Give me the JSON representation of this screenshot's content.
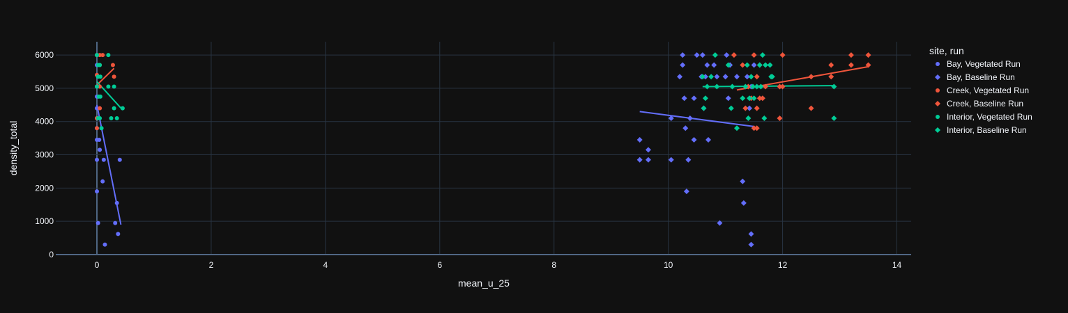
{
  "chart_data": {
    "type": "scatter",
    "title": "",
    "xlabel": "mean_u_25",
    "ylabel": "density_total",
    "xlim": [
      -0.72,
      14.25
    ],
    "ylim": [
      -0.01,
      6400
    ],
    "x_ticks": [
      0,
      2,
      4,
      6,
      8,
      10,
      12,
      14
    ],
    "y_ticks": [
      0,
      1000,
      2000,
      3000,
      4000,
      5000,
      6000
    ],
    "x_tick_labels": [
      "0",
      "2",
      "4",
      "6",
      "8",
      "10",
      "12",
      "14"
    ],
    "y_tick_labels": [
      "0",
      "1000",
      "2000",
      "3000",
      "4000",
      "5000",
      "6000"
    ],
    "grid": true,
    "legend_title": "site, run",
    "legend_position": "right",
    "series": [
      {
        "name": "Bay, Vegetated Run",
        "color": "#636efa",
        "marker": "circle",
        "points": [
          [
            0,
            6000
          ],
          [
            0,
            5700
          ],
          [
            0,
            5400
          ],
          [
            0,
            5050
          ],
          [
            0,
            4750
          ],
          [
            0,
            4400
          ],
          [
            0,
            4100
          ],
          [
            0,
            3800
          ],
          [
            0,
            3450
          ],
          [
            0,
            2850
          ],
          [
            0,
            1900
          ],
          [
            0.02,
            950
          ],
          [
            0.04,
            3450
          ],
          [
            0.05,
            3150
          ],
          [
            0.08,
            3800
          ],
          [
            0.1,
            2200
          ],
          [
            0.12,
            2850
          ],
          [
            0.14,
            300
          ],
          [
            0.32,
            950
          ],
          [
            0.35,
            1550
          ],
          [
            0.37,
            620
          ],
          [
            0.4,
            2850
          ]
        ],
        "trendline": [
          [
            0,
            4500
          ],
          [
            0.42,
            900
          ]
        ]
      },
      {
        "name": "Bay, Baseline Run",
        "color": "#636efa",
        "marker": "diamond",
        "points": [
          [
            9.5,
            3450
          ],
          [
            9.5,
            2850
          ],
          [
            9.65,
            3150
          ],
          [
            9.65,
            2850
          ],
          [
            10.05,
            4100
          ],
          [
            10.05,
            2850
          ],
          [
            10.2,
            5350
          ],
          [
            10.25,
            6000
          ],
          [
            10.25,
            5700
          ],
          [
            10.28,
            4700
          ],
          [
            10.3,
            3800
          ],
          [
            10.32,
            1900
          ],
          [
            10.35,
            2850
          ],
          [
            10.38,
            4100
          ],
          [
            10.45,
            4700
          ],
          [
            10.45,
            3450
          ],
          [
            10.5,
            6000
          ],
          [
            10.58,
            5350
          ],
          [
            10.6,
            6000
          ],
          [
            10.62,
            4400
          ],
          [
            10.65,
            5350
          ],
          [
            10.68,
            5700
          ],
          [
            10.7,
            3450
          ],
          [
            10.8,
            5700
          ],
          [
            10.85,
            5350
          ],
          [
            10.9,
            950
          ],
          [
            11,
            5350
          ],
          [
            11.02,
            6000
          ],
          [
            11.05,
            4700
          ],
          [
            11.08,
            5700
          ],
          [
            11.2,
            5350
          ],
          [
            11.3,
            2200
          ],
          [
            11.32,
            1550
          ],
          [
            11.38,
            5350
          ],
          [
            11.42,
            4400
          ],
          [
            11.45,
            5050
          ],
          [
            11.45,
            620
          ],
          [
            11.45,
            300
          ],
          [
            11.5,
            5700
          ]
        ],
        "trendline": [
          [
            9.5,
            4300
          ],
          [
            11.5,
            3850
          ]
        ]
      },
      {
        "name": "Creek, Vegetated Run",
        "color": "#ef553b",
        "marker": "circle",
        "points": [
          [
            0,
            6000
          ],
          [
            0.05,
            6000
          ],
          [
            0.1,
            6000
          ],
          [
            0.05,
            5700
          ],
          [
            0,
            5400
          ],
          [
            0.05,
            5050
          ],
          [
            0.05,
            4400
          ],
          [
            0,
            4100
          ],
          [
            0,
            3800
          ],
          [
            0.28,
            5700
          ],
          [
            0.3,
            5350
          ]
        ],
        "trendline": [
          [
            0,
            5100
          ],
          [
            0.3,
            5600
          ]
        ]
      },
      {
        "name": "Creek, Baseline Run",
        "color": "#ef553b",
        "marker": "diamond",
        "points": [
          [
            11.15,
            6000
          ],
          [
            11.3,
            5700
          ],
          [
            11.35,
            4400
          ],
          [
            11.4,
            5050
          ],
          [
            11.45,
            4700
          ],
          [
            11.5,
            6000
          ],
          [
            11.5,
            3800
          ],
          [
            11.55,
            3800
          ],
          [
            11.55,
            5350
          ],
          [
            11.6,
            5700
          ],
          [
            11.6,
            4700
          ],
          [
            11.55,
            4400
          ],
          [
            11.65,
            4700
          ],
          [
            11.7,
            5050
          ],
          [
            11.95,
            4100
          ],
          [
            11.95,
            5050
          ],
          [
            12,
            5050
          ],
          [
            12,
            6000
          ],
          [
            12.5,
            5350
          ],
          [
            12.5,
            4400
          ],
          [
            12.85,
            5700
          ],
          [
            12.85,
            5350
          ],
          [
            13.2,
            6000
          ],
          [
            13.2,
            5700
          ],
          [
            13.5,
            6000
          ],
          [
            13.5,
            5700
          ]
        ],
        "trendline": [
          [
            11.2,
            4950
          ],
          [
            13.5,
            5650
          ]
        ]
      },
      {
        "name": "Interior, Vegetated Run",
        "color": "#00cc96",
        "marker": "circle",
        "points": [
          [
            0,
            6000
          ],
          [
            0.02,
            5700
          ],
          [
            0.05,
            5700
          ],
          [
            0.02,
            5350
          ],
          [
            0.06,
            5350
          ],
          [
            0,
            5050
          ],
          [
            0.03,
            4750
          ],
          [
            0.06,
            4750
          ],
          [
            0.02,
            4100
          ],
          [
            0.05,
            4100
          ],
          [
            0.08,
            3800
          ],
          [
            0.2,
            6000
          ],
          [
            0.2,
            5050
          ],
          [
            0.25,
            4100
          ],
          [
            0.3,
            5050
          ],
          [
            0.3,
            4400
          ],
          [
            0.35,
            4100
          ],
          [
            0.45,
            4400
          ]
        ],
        "trendline": [
          [
            0,
            5200
          ],
          [
            0.45,
            4350
          ]
        ]
      },
      {
        "name": "Interior, Baseline Run",
        "color": "#00cc96",
        "marker": "diamond",
        "points": [
          [
            10.6,
            5350
          ],
          [
            10.62,
            4400
          ],
          [
            10.65,
            4700
          ],
          [
            10.68,
            5050
          ],
          [
            10.75,
            5350
          ],
          [
            10.82,
            6000
          ],
          [
            10.85,
            5050
          ],
          [
            11.05,
            5700
          ],
          [
            11.1,
            4400
          ],
          [
            11.12,
            5050
          ],
          [
            11.2,
            3800
          ],
          [
            11.3,
            4700
          ],
          [
            11.35,
            5050
          ],
          [
            11.38,
            5700
          ],
          [
            11.4,
            4100
          ],
          [
            11.42,
            4700
          ],
          [
            11.45,
            5350
          ],
          [
            11.48,
            5050
          ],
          [
            11.5,
            4700
          ],
          [
            11.55,
            5050
          ],
          [
            11.6,
            5700
          ],
          [
            11.62,
            5050
          ],
          [
            11.65,
            6000
          ],
          [
            11.68,
            4100
          ],
          [
            11.7,
            5700
          ],
          [
            11.78,
            5700
          ],
          [
            11.8,
            5350
          ],
          [
            11.82,
            5350
          ],
          [
            12.9,
            5050
          ],
          [
            12.9,
            4100
          ]
        ],
        "trendline": [
          [
            10.6,
            5050
          ],
          [
            12.9,
            5080
          ]
        ]
      }
    ]
  }
}
